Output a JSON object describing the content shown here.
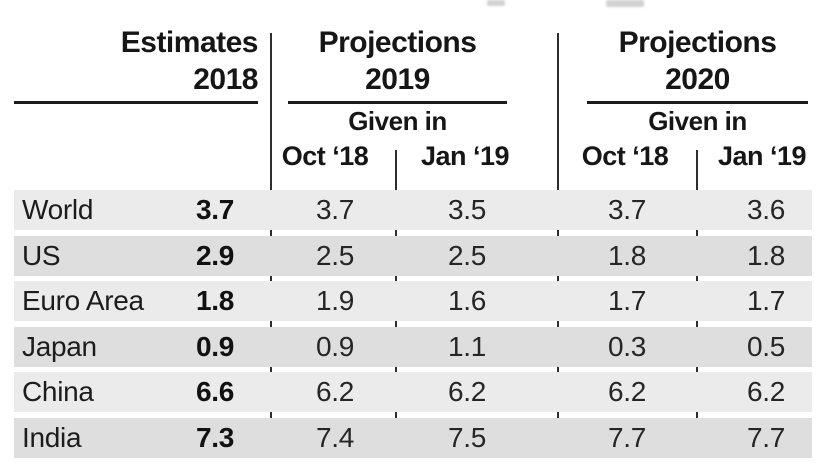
{
  "table": {
    "groups": [
      {
        "line1": "Estimates",
        "line2": "2018"
      },
      {
        "line1": "Projections",
        "line2": "2019",
        "given_in": "Given in",
        "sub_cols": [
          "Oct ‘18",
          "Jan ‘19"
        ]
      },
      {
        "line1": "Projections",
        "line2": "2020",
        "given_in": "Given in",
        "sub_cols": [
          "Oct ‘18",
          "Jan ‘19"
        ]
      }
    ],
    "rows": [
      {
        "label": "World",
        "est_2018": "3.7",
        "p2019_oct": "3.7",
        "p2019_jan": "3.5",
        "p2020_oct": "3.7",
        "p2020_jan": "3.6"
      },
      {
        "label": "US",
        "est_2018": "2.9",
        "p2019_oct": "2.5",
        "p2019_jan": "2.5",
        "p2020_oct": "1.8",
        "p2020_jan": "1.8"
      },
      {
        "label": "Euro Area",
        "est_2018": "1.8",
        "p2019_oct": "1.9",
        "p2019_jan": "1.6",
        "p2020_oct": "1.7",
        "p2020_jan": "1.7"
      },
      {
        "label": "Japan",
        "est_2018": "0.9",
        "p2019_oct": "0.9",
        "p2019_jan": "1.1",
        "p2020_oct": "0.3",
        "p2020_jan": "0.5"
      },
      {
        "label": "China",
        "est_2018": "6.6",
        "p2019_oct": "6.2",
        "p2019_jan": "6.2",
        "p2020_oct": "6.2",
        "p2020_jan": "6.2"
      },
      {
        "label": "India",
        "est_2018": "7.3",
        "p2019_oct": "7.4",
        "p2019_jan": "7.5",
        "p2020_oct": "7.7",
        "p2020_jan": "7.7"
      }
    ]
  },
  "chart_data": {
    "type": "table",
    "categories": [
      "World",
      "US",
      "Euro Area",
      "Japan",
      "China",
      "India"
    ],
    "series": [
      {
        "name": "Estimates 2018",
        "values": [
          3.7,
          2.9,
          1.8,
          0.9,
          6.6,
          7.3
        ]
      },
      {
        "name": "Projections 2019 — Given in Oct ‘18",
        "values": [
          3.7,
          2.5,
          1.9,
          0.9,
          6.2,
          7.4
        ]
      },
      {
        "name": "Projections 2019 — Given in Jan ‘19",
        "values": [
          3.5,
          2.5,
          1.6,
          1.1,
          6.2,
          7.5
        ]
      },
      {
        "name": "Projections 2020 — Given in Oct ‘18",
        "values": [
          3.7,
          1.8,
          1.7,
          0.3,
          6.2,
          7.7
        ]
      },
      {
        "name": "Projections 2020 — Given in Jan ‘19",
        "values": [
          3.6,
          1.8,
          1.7,
          0.5,
          6.2,
          7.7
        ]
      }
    ],
    "layout": {
      "row_stripes": true,
      "legend_position": "none",
      "grid": false
    }
  },
  "colors": {
    "background": "#ffffff",
    "stripe_light": "#ebebeb",
    "stripe_dark": "#dedede",
    "rule": "#1c1c1c",
    "divider": "#2e2e2e",
    "text": "#1a1a1a"
  }
}
